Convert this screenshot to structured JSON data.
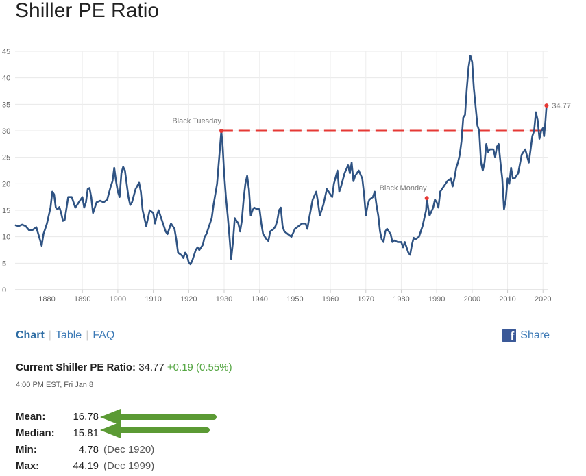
{
  "title": "Shiller PE Ratio",
  "nav": {
    "chart": "Chart",
    "table": "Table",
    "faq": "FAQ",
    "separator": "|"
  },
  "share": {
    "label": "Share",
    "icon": "facebook-icon",
    "icon_glyph": "f"
  },
  "current": {
    "label": "Current Shiller PE Ratio:",
    "value": "34.77",
    "change": "+0.19 (0.55%)",
    "timestamp": "4:00 PM EST, Fri Jan 8"
  },
  "stats": {
    "mean": {
      "label": "Mean:",
      "value": "16.78",
      "date": ""
    },
    "median": {
      "label": "Median:",
      "value": "15.81",
      "date": ""
    },
    "min": {
      "label": "Min:",
      "value": "4.78",
      "date": "(Dec 1920)"
    },
    "max": {
      "label": "Max:",
      "value": "44.19",
      "date": "(Dec 1999)"
    }
  },
  "colors": {
    "line": "#2f5383",
    "accent": "#e53935",
    "link": "#3a78b5",
    "positive": "#55a643",
    "arrow": "#5b9a34"
  },
  "chart_data": {
    "type": "line",
    "title": "",
    "xlabel": "",
    "ylabel": "",
    "xlim": [
      1871,
      2021.5
    ],
    "ylim": [
      0,
      45
    ],
    "x_ticks": [
      1880,
      1890,
      1900,
      1910,
      1920,
      1930,
      1940,
      1950,
      1960,
      1970,
      1980,
      1990,
      2000,
      2010,
      2020
    ],
    "y_ticks": [
      0,
      5,
      10,
      15,
      20,
      25,
      30,
      35,
      40,
      45
    ],
    "grid": true,
    "series": [
      {
        "points": [
          [
            1871,
            12.2
          ],
          [
            1872,
            12
          ],
          [
            1873,
            12.3
          ],
          [
            1874,
            12
          ],
          [
            1875,
            11.2
          ],
          [
            1876,
            11.3
          ],
          [
            1877,
            11.8
          ],
          [
            1878,
            9.5
          ],
          [
            1878.5,
            8.3
          ],
          [
            1879,
            10.5
          ],
          [
            1880,
            12.5
          ],
          [
            1880.5,
            14
          ],
          [
            1881,
            15.5
          ],
          [
            1881.5,
            18.5
          ],
          [
            1882,
            18
          ],
          [
            1882.5,
            15.5
          ],
          [
            1883,
            15.2
          ],
          [
            1883.5,
            15.6
          ],
          [
            1884,
            14.5
          ],
          [
            1884.5,
            13
          ],
          [
            1885,
            13.2
          ],
          [
            1886,
            17.5
          ],
          [
            1887,
            17.5
          ],
          [
            1888,
            15.5
          ],
          [
            1889,
            16.5
          ],
          [
            1890,
            17.5
          ],
          [
            1890.5,
            15.5
          ],
          [
            1891,
            16.5
          ],
          [
            1891.5,
            19
          ],
          [
            1892,
            19.2
          ],
          [
            1892.5,
            17.5
          ],
          [
            1893,
            14.5
          ],
          [
            1894,
            16.5
          ],
          [
            1895,
            16.8
          ],
          [
            1896,
            16.5
          ],
          [
            1897,
            17
          ],
          [
            1898,
            19.5
          ],
          [
            1898.5,
            20.5
          ],
          [
            1899,
            23
          ],
          [
            1899.5,
            20.5
          ],
          [
            1900,
            18.5
          ],
          [
            1900.5,
            17.5
          ],
          [
            1901,
            22
          ],
          [
            1901.5,
            23.2
          ],
          [
            1902,
            22.5
          ],
          [
            1903,
            17.5
          ],
          [
            1903.5,
            16
          ],
          [
            1904,
            16.5
          ],
          [
            1905,
            19
          ],
          [
            1906,
            20.2
          ],
          [
            1906.5,
            18.5
          ],
          [
            1907,
            15
          ],
          [
            1908,
            12
          ],
          [
            1908.5,
            13.5
          ],
          [
            1909,
            15
          ],
          [
            1910,
            14.5
          ],
          [
            1910.5,
            12.5
          ],
          [
            1911,
            14
          ],
          [
            1911.5,
            15
          ],
          [
            1912,
            14
          ],
          [
            1913,
            12
          ],
          [
            1913.5,
            11
          ],
          [
            1914,
            10.5
          ],
          [
            1915,
            12.5
          ],
          [
            1916,
            11.5
          ],
          [
            1916.5,
            9.5
          ],
          [
            1917,
            7
          ],
          [
            1918,
            6.5
          ],
          [
            1918.5,
            6
          ],
          [
            1919,
            7
          ],
          [
            1919.5,
            6.5
          ],
          [
            1920,
            5.2
          ],
          [
            1920.5,
            4.8
          ],
          [
            1921,
            5.5
          ],
          [
            1922,
            7.5
          ],
          [
            1922.5,
            8
          ],
          [
            1923,
            7.5
          ],
          [
            1923.5,
            8
          ],
          [
            1924,
            8.5
          ],
          [
            1924.5,
            10
          ],
          [
            1925,
            10.5
          ],
          [
            1926,
            12.5
          ],
          [
            1926.5,
            13.5
          ],
          [
            1927,
            16
          ],
          [
            1928,
            20
          ],
          [
            1928.5,
            24
          ],
          [
            1929.2,
            30
          ],
          [
            1929.6,
            27
          ],
          [
            1930,
            22
          ],
          [
            1930.5,
            17.5
          ],
          [
            1931,
            14
          ],
          [
            1931.5,
            10
          ],
          [
            1932,
            5.8
          ],
          [
            1932.5,
            9
          ],
          [
            1933,
            13.5
          ],
          [
            1934,
            12.5
          ],
          [
            1934.5,
            11
          ],
          [
            1935,
            13
          ],
          [
            1935.5,
            17
          ],
          [
            1936,
            20
          ],
          [
            1936.5,
            21.5
          ],
          [
            1937,
            19
          ],
          [
            1937.5,
            14
          ],
          [
            1938,
            15
          ],
          [
            1938.5,
            15.5
          ],
          [
            1939,
            15.3
          ],
          [
            1940,
            15.2
          ],
          [
            1940.5,
            12.5
          ],
          [
            1941,
            10.5
          ],
          [
            1942,
            9.5
          ],
          [
            1942.5,
            9.2
          ],
          [
            1943,
            11
          ],
          [
            1944,
            11.5
          ],
          [
            1944.5,
            12
          ],
          [
            1945,
            13
          ],
          [
            1945.5,
            15
          ],
          [
            1946,
            15.5
          ],
          [
            1946.5,
            12
          ],
          [
            1947,
            11
          ],
          [
            1948,
            10.5
          ],
          [
            1949,
            10
          ],
          [
            1950,
            11.5
          ],
          [
            1951,
            12
          ],
          [
            1952,
            12.5
          ],
          [
            1953,
            12.5
          ],
          [
            1953.5,
            11.5
          ],
          [
            1954,
            13.5
          ],
          [
            1955,
            17
          ],
          [
            1956,
            18.5
          ],
          [
            1956.5,
            16.5
          ],
          [
            1957,
            14
          ],
          [
            1958,
            16
          ],
          [
            1959,
            19
          ],
          [
            1960,
            18
          ],
          [
            1960.5,
            17.5
          ],
          [
            1961,
            20
          ],
          [
            1962,
            22.5
          ],
          [
            1962.5,
            18.5
          ],
          [
            1963,
            19.5
          ],
          [
            1964,
            22
          ],
          [
            1965,
            23.5
          ],
          [
            1965.5,
            22
          ],
          [
            1966,
            24
          ],
          [
            1966.5,
            20.5
          ],
          [
            1967,
            21.5
          ],
          [
            1968,
            22.5
          ],
          [
            1969,
            21
          ],
          [
            1969.5,
            18
          ],
          [
            1970,
            14
          ],
          [
            1970.5,
            16
          ],
          [
            1971,
            17
          ],
          [
            1972,
            17.5
          ],
          [
            1972.5,
            18.5
          ],
          [
            1973,
            16
          ],
          [
            1973.5,
            14
          ],
          [
            1974,
            11
          ],
          [
            1974.5,
            9.5
          ],
          [
            1975,
            9
          ],
          [
            1975.5,
            11
          ],
          [
            1976,
            11.5
          ],
          [
            1977,
            10.5
          ],
          [
            1977.5,
            9
          ],
          [
            1978,
            9.3
          ],
          [
            1979,
            9
          ],
          [
            1980,
            9
          ],
          [
            1980.5,
            8
          ],
          [
            1981,
            9
          ],
          [
            1981.5,
            8
          ],
          [
            1982,
            7
          ],
          [
            1982.5,
            6.6
          ],
          [
            1983,
            8.5
          ],
          [
            1983.5,
            9.8
          ],
          [
            1984,
            9.5
          ],
          [
            1985,
            10
          ],
          [
            1986,
            12
          ],
          [
            1987,
            15
          ],
          [
            1987.2,
            17.3
          ],
          [
            1987.8,
            14.5
          ],
          [
            1988,
            14
          ],
          [
            1989,
            15.5
          ],
          [
            1989.5,
            17
          ],
          [
            1990,
            16.5
          ],
          [
            1990.5,
            15.5
          ],
          [
            1991,
            18.5
          ],
          [
            1992,
            19.5
          ],
          [
            1993,
            20.5
          ],
          [
            1994,
            21
          ],
          [
            1994.5,
            19.5
          ],
          [
            1995,
            21
          ],
          [
            1995.5,
            23
          ],
          [
            1996,
            24
          ],
          [
            1996.5,
            25.5
          ],
          [
            1997,
            28
          ],
          [
            1997.5,
            32.5
          ],
          [
            1998,
            33
          ],
          [
            1998.5,
            38
          ],
          [
            1999,
            42
          ],
          [
            1999.5,
            44.19
          ],
          [
            2000,
            43
          ],
          [
            2000.5,
            38
          ],
          [
            2001,
            34.5
          ],
          [
            2001.5,
            31
          ],
          [
            2002,
            30
          ],
          [
            2002.5,
            24
          ],
          [
            2003,
            22.5
          ],
          [
            2003.5,
            24
          ],
          [
            2004,
            27.5
          ],
          [
            2004.5,
            26
          ],
          [
            2005,
            26.5
          ],
          [
            2006,
            26.5
          ],
          [
            2006.5,
            25
          ],
          [
            2007,
            27
          ],
          [
            2007.5,
            27.5
          ],
          [
            2008,
            24
          ],
          [
            2008.5,
            21
          ],
          [
            2009,
            15.2
          ],
          [
            2009.5,
            17
          ],
          [
            2010,
            21
          ],
          [
            2010.5,
            20
          ],
          [
            2011,
            23
          ],
          [
            2011.5,
            21
          ],
          [
            2012,
            21
          ],
          [
            2013,
            22
          ],
          [
            2014,
            25.5
          ],
          [
            2014.5,
            26
          ],
          [
            2015,
            26.5
          ],
          [
            2016,
            24
          ],
          [
            2016.5,
            26.5
          ],
          [
            2017,
            29
          ],
          [
            2017.5,
            30
          ],
          [
            2018,
            33.5
          ],
          [
            2018.5,
            32
          ],
          [
            2019,
            28.5
          ],
          [
            2019.5,
            30
          ],
          [
            2020,
            30.5
          ],
          [
            2020.3,
            29
          ],
          [
            2020.7,
            32
          ],
          [
            2021,
            34.77
          ]
        ]
      },
      {
        "name": "Black Tuesday reference",
        "style": "dashed",
        "points": [
          [
            1929.2,
            30
          ],
          [
            2021,
            30
          ]
        ]
      }
    ],
    "annotations": [
      {
        "label": "Black Tuesday",
        "x": 1929.2,
        "y": 30
      },
      {
        "label": "Black Monday",
        "x": 1987.2,
        "y": 17.3
      }
    ],
    "end_label": {
      "x": 2021,
      "y": 34.77,
      "text": "34.77"
    }
  }
}
